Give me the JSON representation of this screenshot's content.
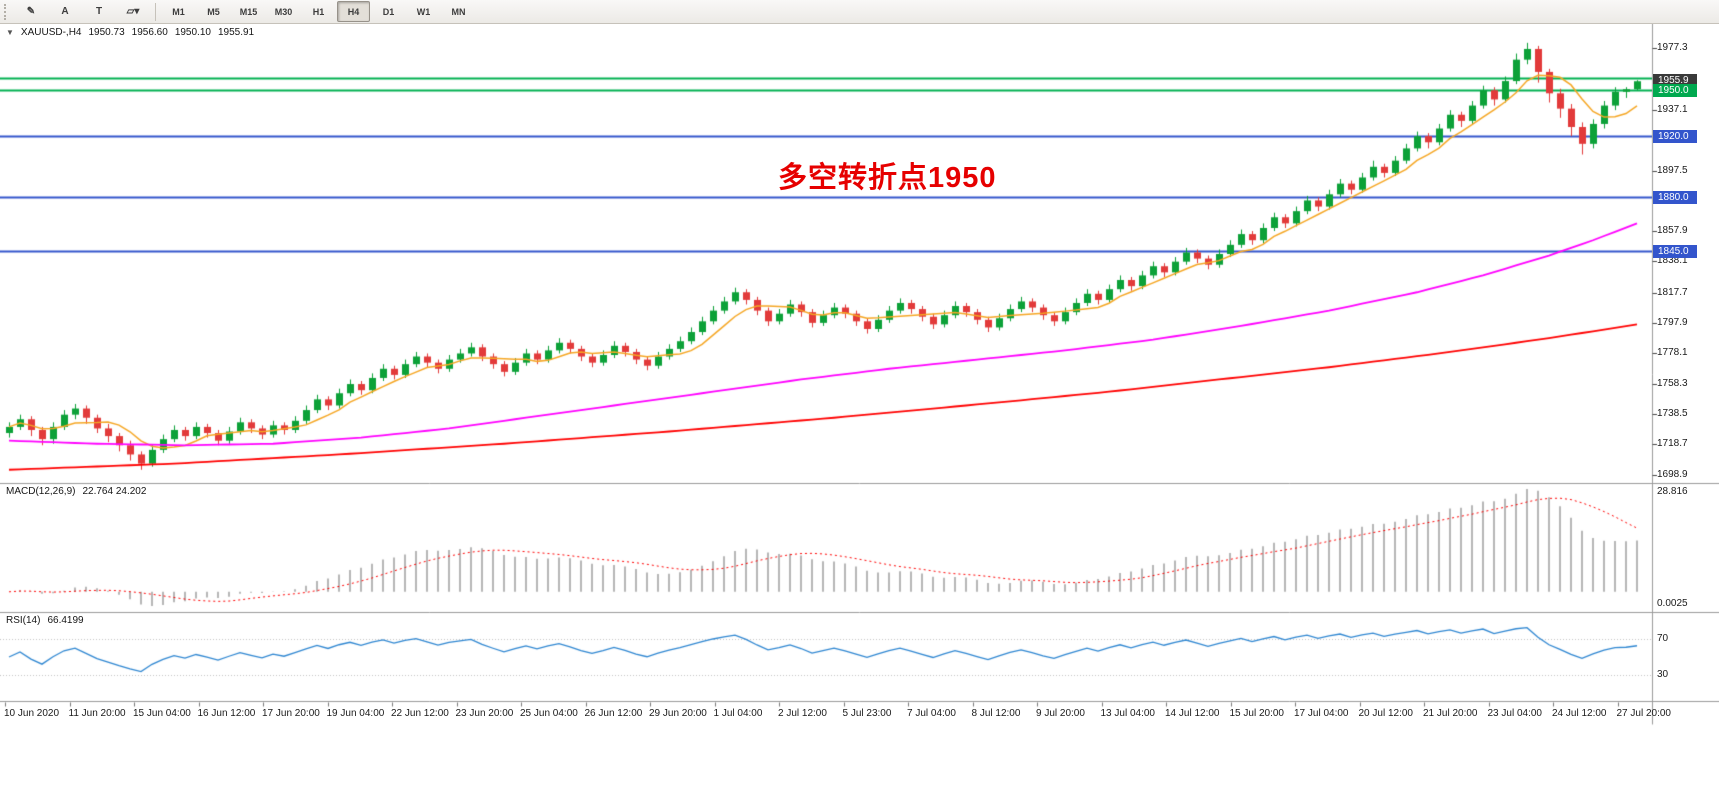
{
  "toolbar": {
    "tools": [
      {
        "name": "pencil",
        "glyph": "✎"
      },
      {
        "name": "text-label",
        "glyph": "A"
      },
      {
        "name": "text-box",
        "glyph": "T"
      },
      {
        "name": "shapes-dropdown",
        "glyph": "▱▾"
      }
    ],
    "timeframes": [
      {
        "label": "M1",
        "active": false
      },
      {
        "label": "M5",
        "active": false
      },
      {
        "label": "M15",
        "active": false
      },
      {
        "label": "M30",
        "active": false
      },
      {
        "label": "H1",
        "active": false
      },
      {
        "label": "H4",
        "active": true
      },
      {
        "label": "D1",
        "active": false
      },
      {
        "label": "W1",
        "active": false
      },
      {
        "label": "MN",
        "active": false
      }
    ]
  },
  "chart": {
    "symbol_line": {
      "marker": "▼",
      "symbol": "XAUUSD-,H4",
      "open": "1950.73",
      "high": "1956.60",
      "low": "1950.10",
      "close": "1955.91"
    },
    "annotation": {
      "text": "多空转折点1950",
      "color": "#e60000"
    },
    "price_axis": {
      "ticks": [
        "1977.3",
        "1937.1",
        "1897.5",
        "1857.9",
        "1838.1",
        "1817.7",
        "1797.9",
        "1778.1",
        "1758.3",
        "1738.5",
        "1718.7",
        "1698.9"
      ],
      "bid": {
        "label": "1955.9",
        "value": 1955.91,
        "bg": "#3a3a3a"
      }
    },
    "hlines": [
      {
        "price": 1958.0,
        "color": "#00b050",
        "width": 2,
        "tag": null
      },
      {
        "price": 1950.0,
        "color": "#00b050",
        "width": 2,
        "tag": {
          "label": "1950.0",
          "bg": "#00a94f"
        }
      },
      {
        "price": 1920.0,
        "color": "#3355cc",
        "width": 2,
        "tag": {
          "label": "1920.0",
          "bg": "#3355cc"
        }
      },
      {
        "price": 1880.0,
        "color": "#3355cc",
        "width": 2,
        "tag": {
          "label": "1880.0",
          "bg": "#3355cc"
        }
      },
      {
        "price": 1845.0,
        "color": "#3355cc",
        "width": 2,
        "tag": {
          "label": "1845.0",
          "bg": "#3355cc"
        }
      }
    ]
  },
  "macd": {
    "label": "MACD(12,26,9)",
    "values": "22.764 24.202",
    "axis_max": "28.816",
    "axis_min": "0.0025"
  },
  "rsi": {
    "label": "RSI(14)",
    "value": "66.4199",
    "levels": [
      {
        "value": 70,
        "label": "70"
      },
      {
        "value": 30,
        "label": "30"
      }
    ]
  },
  "chart_data": {
    "type": "candlestick",
    "symbol": "XAUUSD",
    "timeframe": "H4",
    "y_range": [
      1694,
      1992
    ],
    "bull_color": "#0ca138",
    "bear_color": "#e23a3a",
    "ma_fast_color": "#f5a623",
    "ma_mid_color": "#ff00ff",
    "ma_slow_color": "#ff0000",
    "macd_hist_color": "#b6b6b6",
    "macd_signal_color": "#ff0000",
    "rsi_line_color": "#2e86d1",
    "rsi_level_color": "#c0c0c0",
    "ohlc": [
      [
        1726,
        1733,
        1723,
        1730
      ],
      [
        1730,
        1738,
        1728,
        1735
      ],
      [
        1735,
        1737,
        1724,
        1728
      ],
      [
        1728,
        1730,
        1718,
        1722
      ],
      [
        1722,
        1733,
        1719,
        1730
      ],
      [
        1730,
        1741,
        1728,
        1738
      ],
      [
        1738,
        1745,
        1735,
        1742
      ],
      [
        1742,
        1744,
        1732,
        1736
      ],
      [
        1736,
        1738,
        1726,
        1729
      ],
      [
        1729,
        1732,
        1720,
        1724
      ],
      [
        1724,
        1726,
        1714,
        1718
      ],
      [
        1718,
        1721,
        1708,
        1712
      ],
      [
        1712,
        1714,
        1702,
        1706
      ],
      [
        1706,
        1718,
        1704,
        1715
      ],
      [
        1715,
        1725,
        1713,
        1722
      ],
      [
        1722,
        1731,
        1720,
        1728
      ],
      [
        1728,
        1730,
        1721,
        1724
      ],
      [
        1724,
        1733,
        1722,
        1730
      ],
      [
        1730,
        1732,
        1723,
        1726
      ],
      [
        1726,
        1728,
        1718,
        1721
      ],
      [
        1721,
        1730,
        1719,
        1727
      ],
      [
        1727,
        1736,
        1725,
        1733
      ],
      [
        1733,
        1735,
        1726,
        1729
      ],
      [
        1729,
        1731,
        1722,
        1725
      ],
      [
        1725,
        1734,
        1723,
        1731
      ],
      [
        1731,
        1733,
        1725,
        1728
      ],
      [
        1728,
        1737,
        1726,
        1734
      ],
      [
        1734,
        1744,
        1732,
        1741
      ],
      [
        1741,
        1751,
        1739,
        1748
      ],
      [
        1748,
        1750,
        1741,
        1744
      ],
      [
        1744,
        1755,
        1742,
        1752
      ],
      [
        1752,
        1761,
        1750,
        1758
      ],
      [
        1758,
        1760,
        1751,
        1754
      ],
      [
        1754,
        1765,
        1752,
        1762
      ],
      [
        1762,
        1771,
        1760,
        1768
      ],
      [
        1768,
        1770,
        1761,
        1764
      ],
      [
        1764,
        1774,
        1762,
        1771
      ],
      [
        1771,
        1779,
        1769,
        1776
      ],
      [
        1776,
        1778,
        1769,
        1772
      ],
      [
        1772,
        1774,
        1765,
        1768
      ],
      [
        1768,
        1777,
        1766,
        1774
      ],
      [
        1774,
        1781,
        1772,
        1778
      ],
      [
        1778,
        1785,
        1776,
        1782
      ],
      [
        1782,
        1784,
        1773,
        1776
      ],
      [
        1776,
        1778,
        1768,
        1771
      ],
      [
        1771,
        1773,
        1763,
        1766
      ],
      [
        1766,
        1775,
        1764,
        1772
      ],
      [
        1772,
        1781,
        1770,
        1778
      ],
      [
        1778,
        1780,
        1771,
        1774
      ],
      [
        1774,
        1783,
        1772,
        1780
      ],
      [
        1780,
        1788,
        1778,
        1785
      ],
      [
        1785,
        1787,
        1778,
        1781
      ],
      [
        1781,
        1783,
        1773,
        1776
      ],
      [
        1776,
        1778,
        1769,
        1772
      ],
      [
        1772,
        1780,
        1770,
        1777
      ],
      [
        1777,
        1786,
        1775,
        1783
      ],
      [
        1783,
        1785,
        1776,
        1779
      ],
      [
        1779,
        1781,
        1771,
        1774
      ],
      [
        1774,
        1776,
        1767,
        1770
      ],
      [
        1770,
        1779,
        1768,
        1776
      ],
      [
        1776,
        1784,
        1774,
        1781
      ],
      [
        1781,
        1789,
        1779,
        1786
      ],
      [
        1786,
        1795,
        1784,
        1792
      ],
      [
        1792,
        1802,
        1790,
        1799
      ],
      [
        1799,
        1809,
        1797,
        1806
      ],
      [
        1806,
        1815,
        1804,
        1812
      ],
      [
        1812,
        1821,
        1810,
        1818
      ],
      [
        1818,
        1820,
        1810,
        1813
      ],
      [
        1813,
        1815,
        1803,
        1806
      ],
      [
        1806,
        1808,
        1796,
        1799
      ],
      [
        1799,
        1807,
        1797,
        1804
      ],
      [
        1804,
        1813,
        1802,
        1810
      ],
      [
        1810,
        1812,
        1802,
        1805
      ],
      [
        1805,
        1807,
        1795,
        1798
      ],
      [
        1798,
        1806,
        1796,
        1803
      ],
      [
        1803,
        1811,
        1801,
        1808
      ],
      [
        1808,
        1810,
        1801,
        1804
      ],
      [
        1804,
        1806,
        1796,
        1799
      ],
      [
        1799,
        1801,
        1791,
        1794
      ],
      [
        1794,
        1803,
        1792,
        1800
      ],
      [
        1800,
        1809,
        1798,
        1806
      ],
      [
        1806,
        1814,
        1804,
        1811
      ],
      [
        1811,
        1813,
        1804,
        1807
      ],
      [
        1807,
        1809,
        1799,
        1802
      ],
      [
        1802,
        1804,
        1794,
        1797
      ],
      [
        1797,
        1806,
        1795,
        1803
      ],
      [
        1803,
        1812,
        1801,
        1809
      ],
      [
        1809,
        1811,
        1802,
        1805
      ],
      [
        1805,
        1807,
        1797,
        1800
      ],
      [
        1800,
        1802,
        1792,
        1795
      ],
      [
        1795,
        1804,
        1793,
        1801
      ],
      [
        1801,
        1810,
        1799,
        1807
      ],
      [
        1807,
        1815,
        1805,
        1812
      ],
      [
        1812,
        1814,
        1805,
        1808
      ],
      [
        1808,
        1810,
        1800,
        1803
      ],
      [
        1803,
        1805,
        1796,
        1799
      ],
      [
        1799,
        1808,
        1797,
        1805
      ],
      [
        1805,
        1814,
        1803,
        1811
      ],
      [
        1811,
        1820,
        1809,
        1817
      ],
      [
        1817,
        1819,
        1810,
        1813
      ],
      [
        1813,
        1823,
        1811,
        1820
      ],
      [
        1820,
        1829,
        1818,
        1826
      ],
      [
        1826,
        1828,
        1819,
        1822
      ],
      [
        1822,
        1832,
        1820,
        1829
      ],
      [
        1829,
        1838,
        1827,
        1835
      ],
      [
        1835,
        1837,
        1828,
        1831
      ],
      [
        1831,
        1841,
        1829,
        1838
      ],
      [
        1838,
        1847,
        1836,
        1844
      ],
      [
        1844,
        1846,
        1837,
        1840
      ],
      [
        1840,
        1842,
        1833,
        1836
      ],
      [
        1836,
        1846,
        1834,
        1843
      ],
      [
        1843,
        1852,
        1841,
        1849
      ],
      [
        1849,
        1859,
        1847,
        1856
      ],
      [
        1856,
        1858,
        1849,
        1852
      ],
      [
        1852,
        1863,
        1850,
        1860
      ],
      [
        1860,
        1870,
        1858,
        1867
      ],
      [
        1867,
        1869,
        1860,
        1863
      ],
      [
        1863,
        1874,
        1861,
        1871
      ],
      [
        1871,
        1881,
        1869,
        1878
      ],
      [
        1878,
        1880,
        1871,
        1874
      ],
      [
        1874,
        1885,
        1872,
        1882
      ],
      [
        1882,
        1892,
        1880,
        1889
      ],
      [
        1889,
        1891,
        1882,
        1885
      ],
      [
        1885,
        1896,
        1883,
        1893
      ],
      [
        1893,
        1904,
        1891,
        1900
      ],
      [
        1900,
        1902,
        1893,
        1896
      ],
      [
        1896,
        1907,
        1894,
        1904
      ],
      [
        1904,
        1915,
        1902,
        1912
      ],
      [
        1912,
        1923,
        1910,
        1920
      ],
      [
        1920,
        1922,
        1912,
        1916
      ],
      [
        1916,
        1928,
        1914,
        1925
      ],
      [
        1925,
        1937,
        1923,
        1934
      ],
      [
        1934,
        1936,
        1926,
        1930
      ],
      [
        1930,
        1943,
        1928,
        1940
      ],
      [
        1940,
        1953,
        1938,
        1950
      ],
      [
        1950,
        1952,
        1940,
        1944
      ],
      [
        1944,
        1959,
        1942,
        1956
      ],
      [
        1956,
        1974,
        1954,
        1970
      ],
      [
        1970,
        1981,
        1967,
        1977
      ],
      [
        1977,
        1979,
        1955,
        1962
      ],
      [
        1962,
        1964,
        1942,
        1948
      ],
      [
        1948,
        1951,
        1932,
        1938
      ],
      [
        1938,
        1941,
        1920,
        1926
      ],
      [
        1926,
        1929,
        1908,
        1915
      ],
      [
        1915,
        1931,
        1912,
        1928
      ],
      [
        1928,
        1943,
        1925,
        1940
      ],
      [
        1940,
        1952,
        1937,
        1949
      ],
      [
        1949,
        1952,
        1945,
        1950.7
      ],
      [
        1950.7,
        1956.6,
        1950.1,
        1955.9
      ]
    ],
    "ma_mid_anchors": [
      [
        0,
        1721
      ],
      [
        8,
        1719
      ],
      [
        16,
        1718
      ],
      [
        24,
        1719
      ],
      [
        32,
        1723
      ],
      [
        40,
        1729
      ],
      [
        48,
        1737
      ],
      [
        56,
        1745
      ],
      [
        64,
        1753
      ],
      [
        72,
        1761
      ],
      [
        80,
        1768
      ],
      [
        88,
        1774
      ],
      [
        96,
        1780
      ],
      [
        104,
        1787
      ],
      [
        112,
        1796
      ],
      [
        120,
        1806
      ],
      [
        128,
        1818
      ],
      [
        134,
        1829
      ],
      [
        140,
        1842
      ],
      [
        144,
        1852
      ],
      [
        148,
        1863
      ]
    ],
    "ma_slow_anchors": [
      [
        0,
        1702
      ],
      [
        15,
        1706
      ],
      [
        30,
        1712
      ],
      [
        45,
        1719
      ],
      [
        60,
        1727
      ],
      [
        75,
        1736
      ],
      [
        90,
        1746
      ],
      [
        100,
        1753
      ],
      [
        110,
        1761
      ],
      [
        120,
        1769
      ],
      [
        130,
        1778
      ],
      [
        140,
        1788
      ],
      [
        148,
        1797
      ]
    ],
    "time_labels": [
      "10 Jun 2020",
      "11 Jun 20:00",
      "15 Jun 04:00",
      "16 Jun 12:00",
      "17 Jun 20:00",
      "19 Jun 04:00",
      "22 Jun 12:00",
      "23 Jun 20:00",
      "25 Jun 04:00",
      "26 Jun 12:00",
      "29 Jun 20:00",
      "1 Jul 04:00",
      "2 Jul 12:00",
      "5 Jul 23:00",
      "7 Jul 04:00",
      "8 Jul 12:00",
      "9 Jul 20:00",
      "13 Jul 04:00",
      "14 Jul 12:00",
      "15 Jul 20:00",
      "17 Jul 04:00",
      "20 Jul 12:00",
      "21 Jul 20:00",
      "23 Jul 04:00",
      "24 Jul 12:00",
      "27 Jul 20:00"
    ]
  }
}
